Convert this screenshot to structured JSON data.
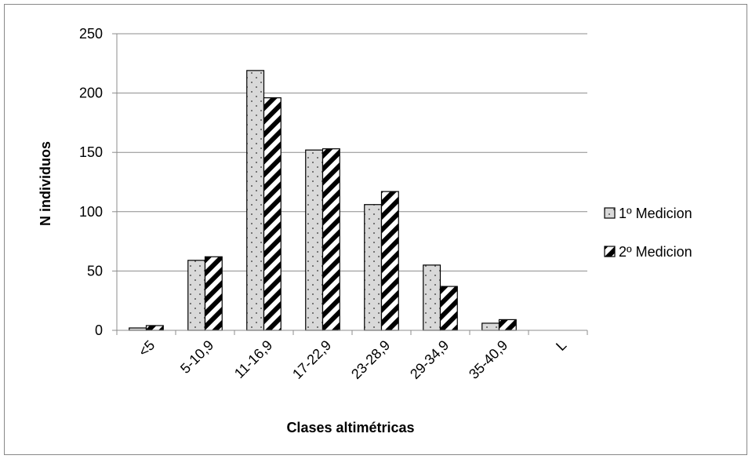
{
  "chart_data": {
    "type": "bar",
    "title": "",
    "xlabel": "Clases altimétricas",
    "ylabel": "N individuos",
    "categories": [
      "<5",
      "5-10,9",
      "11-16,9",
      "17-22,9",
      "23-28,9",
      "29-34,9",
      "35-40,9",
      "L"
    ],
    "series": [
      {
        "name": "1º Medicion",
        "values": [
          2,
          59,
          219,
          152,
          106,
          55,
          6,
          0
        ],
        "pattern": "dotted",
        "color": "#d9d9d9"
      },
      {
        "name": "2º Medicion",
        "values": [
          4,
          62,
          196,
          153,
          117,
          37,
          9,
          0
        ],
        "pattern": "diagonal-stripes",
        "color": "#000000"
      }
    ],
    "ylim": [
      0,
      250
    ],
    "yticks": [
      0,
      50,
      100,
      150,
      200,
      250
    ],
    "grid": true,
    "legend_position": "right"
  }
}
